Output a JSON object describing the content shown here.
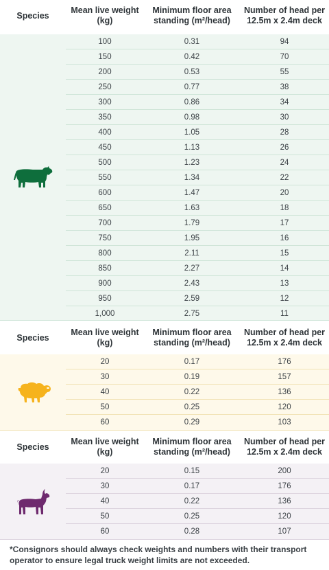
{
  "headers": {
    "species": "Species",
    "weight": "Mean live weight (kg)",
    "area": "Minimum floor area standing (m²/head)",
    "head": "Number of head per 12.5m x 2.4m deck"
  },
  "sections": [
    {
      "name": "cattle",
      "icon": "cow-icon",
      "color": "#0e6e3c",
      "bg": "#eef6f1",
      "line": "#cfe5d8",
      "rows": [
        {
          "w": "100",
          "a": "0.31",
          "h": "94"
        },
        {
          "w": "150",
          "a": "0.42",
          "h": "70"
        },
        {
          "w": "200",
          "a": "0.53",
          "h": "55"
        },
        {
          "w": "250",
          "a": "0.77",
          "h": "38"
        },
        {
          "w": "300",
          "a": "0.86",
          "h": "34"
        },
        {
          "w": "350",
          "a": "0.98",
          "h": "30"
        },
        {
          "w": "400",
          "a": "1.05",
          "h": "28"
        },
        {
          "w": "450",
          "a": "1.13",
          "h": "26"
        },
        {
          "w": "500",
          "a": "1.23",
          "h": "24"
        },
        {
          "w": "550",
          "a": "1.34",
          "h": "22"
        },
        {
          "w": "600",
          "a": "1.47",
          "h": "20"
        },
        {
          "w": "650",
          "a": "1.63",
          "h": "18"
        },
        {
          "w": "700",
          "a": "1.79",
          "h": "17"
        },
        {
          "w": "750",
          "a": "1.95",
          "h": "16"
        },
        {
          "w": "800",
          "a": "2.11",
          "h": "15"
        },
        {
          "w": "850",
          "a": "2.27",
          "h": "14"
        },
        {
          "w": "900",
          "a": "2.43",
          "h": "13"
        },
        {
          "w": "950",
          "a": "2.59",
          "h": "12"
        },
        {
          "w": "1,000",
          "a": "2.75",
          "h": "11"
        }
      ]
    },
    {
      "name": "sheep",
      "icon": "sheep-icon",
      "color": "#f6b31d",
      "bg": "#fef9ea",
      "line": "#f1e2b4",
      "rows": [
        {
          "w": "20",
          "a": "0.17",
          "h": "176"
        },
        {
          "w": "30",
          "a": "0.19",
          "h": "157"
        },
        {
          "w": "40",
          "a": "0.22",
          "h": "136"
        },
        {
          "w": "50",
          "a": "0.25",
          "h": "120"
        },
        {
          "w": "60",
          "a": "0.29",
          "h": "103"
        }
      ]
    },
    {
      "name": "goats",
      "icon": "goat-icon",
      "color": "#6e2a6e",
      "bg": "#f4f1f5",
      "line": "#dcd3de",
      "rows": [
        {
          "w": "20",
          "a": "0.15",
          "h": "200"
        },
        {
          "w": "30",
          "a": "0.17",
          "h": "176"
        },
        {
          "w": "40",
          "a": "0.22",
          "h": "136"
        },
        {
          "w": "50",
          "a": "0.25",
          "h": "120"
        },
        {
          "w": "60",
          "a": "0.28",
          "h": "107"
        }
      ]
    }
  ],
  "footnote": "*Consignors should always check weights and numbers with their transport operator to ensure legal truck weight limits are not exceeded."
}
